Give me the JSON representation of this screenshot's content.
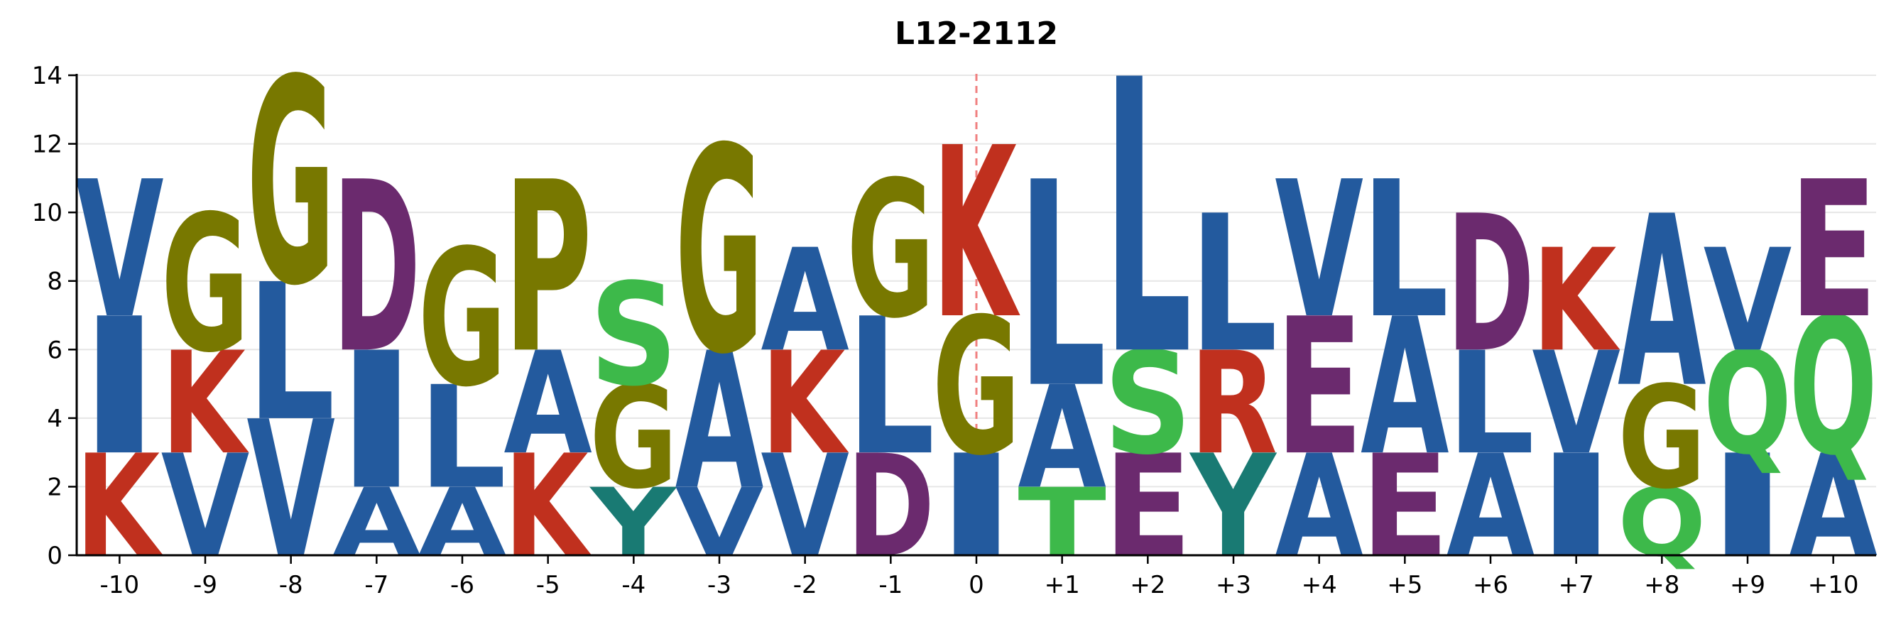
{
  "chart_data": {
    "type": "sequence-logo",
    "title": "L12-2112",
    "xlabel": "",
    "ylabel": "",
    "ylim": [
      0,
      14
    ],
    "yticks": [
      0,
      2,
      4,
      6,
      8,
      10,
      12,
      14
    ],
    "grid": "horizontal",
    "reference_line": {
      "x": "0",
      "style": "dashed",
      "color": "#f08080"
    },
    "positions": [
      "-10",
      "-9",
      "-8",
      "-7",
      "-6",
      "-5",
      "-4",
      "-3",
      "-2",
      "-1",
      "0",
      "+1",
      "+2",
      "+3",
      "+4",
      "+5",
      "+6",
      "+7",
      "+8",
      "+9",
      "+10"
    ],
    "colors": {
      "hydrophobic": "#235a9e",
      "glycine_proline": "#787800",
      "basic": "#c0301e",
      "acidic": "#6b2a6e",
      "polar": "#3db94a",
      "aromatic": "#197a73"
    },
    "residue_colors": {
      "V": "hydrophobic",
      "I": "hydrophobic",
      "L": "hydrophobic",
      "A": "hydrophobic",
      "G": "glycine_proline",
      "P": "glycine_proline",
      "K": "basic",
      "R": "basic",
      "D": "acidic",
      "E": "acidic",
      "S": "polar",
      "T": "polar",
      "Q": "polar",
      "Y": "aromatic"
    },
    "stacks": [
      [
        {
          "aa": "K",
          "value": 3
        },
        {
          "aa": "I",
          "value": 4
        },
        {
          "aa": "V",
          "value": 4
        }
      ],
      [
        {
          "aa": "V",
          "value": 3
        },
        {
          "aa": "K",
          "value": 3
        },
        {
          "aa": "G",
          "value": 4
        }
      ],
      [
        {
          "aa": "V",
          "value": 4
        },
        {
          "aa": "L",
          "value": 4
        },
        {
          "aa": "G",
          "value": 6
        }
      ],
      [
        {
          "aa": "A",
          "value": 2
        },
        {
          "aa": "I",
          "value": 4
        },
        {
          "aa": "D",
          "value": 5
        }
      ],
      [
        {
          "aa": "A",
          "value": 2
        },
        {
          "aa": "L",
          "value": 3
        },
        {
          "aa": "G",
          "value": 4
        }
      ],
      [
        {
          "aa": "K",
          "value": 3
        },
        {
          "aa": "A",
          "value": 3
        },
        {
          "aa": "P",
          "value": 5
        }
      ],
      [
        {
          "aa": "Y",
          "value": 2
        },
        {
          "aa": "G",
          "value": 3
        },
        {
          "aa": "S",
          "value": 3
        }
      ],
      [
        {
          "aa": "V",
          "value": 2
        },
        {
          "aa": "A",
          "value": 4
        },
        {
          "aa": "G",
          "value": 6
        }
      ],
      [
        {
          "aa": "V",
          "value": 3
        },
        {
          "aa": "K",
          "value": 3
        },
        {
          "aa": "A",
          "value": 3
        }
      ],
      [
        {
          "aa": "D",
          "value": 3
        },
        {
          "aa": "L",
          "value": 4
        },
        {
          "aa": "G",
          "value": 4
        }
      ],
      [
        {
          "aa": "I",
          "value": 3
        },
        {
          "aa": "G",
          "value": 4
        },
        {
          "aa": "K",
          "value": 5
        }
      ],
      [
        {
          "aa": "T",
          "value": 2
        },
        {
          "aa": "A",
          "value": 3
        },
        {
          "aa": "L",
          "value": 6
        }
      ],
      [
        {
          "aa": "E",
          "value": 3
        },
        {
          "aa": "S",
          "value": 3
        },
        {
          "aa": "L",
          "value": 8
        }
      ],
      [
        {
          "aa": "Y",
          "value": 3
        },
        {
          "aa": "R",
          "value": 3
        },
        {
          "aa": "L",
          "value": 4
        }
      ],
      [
        {
          "aa": "A",
          "value": 3
        },
        {
          "aa": "E",
          "value": 4
        },
        {
          "aa": "V",
          "value": 4
        }
      ],
      [
        {
          "aa": "E",
          "value": 3
        },
        {
          "aa": "A",
          "value": 4
        },
        {
          "aa": "L",
          "value": 4
        }
      ],
      [
        {
          "aa": "A",
          "value": 3
        },
        {
          "aa": "L",
          "value": 3
        },
        {
          "aa": "D",
          "value": 4
        }
      ],
      [
        {
          "aa": "I",
          "value": 3
        },
        {
          "aa": "V",
          "value": 3
        },
        {
          "aa": "K",
          "value": 3
        }
      ],
      [
        {
          "aa": "Q",
          "value": 2
        },
        {
          "aa": "G",
          "value": 3
        },
        {
          "aa": "A",
          "value": 5
        }
      ],
      [
        {
          "aa": "I",
          "value": 3
        },
        {
          "aa": "Q",
          "value": 3
        },
        {
          "aa": "V",
          "value": 3
        }
      ],
      [
        {
          "aa": "A",
          "value": 3
        },
        {
          "aa": "Q",
          "value": 4
        },
        {
          "aa": "E",
          "value": 4
        }
      ]
    ]
  }
}
